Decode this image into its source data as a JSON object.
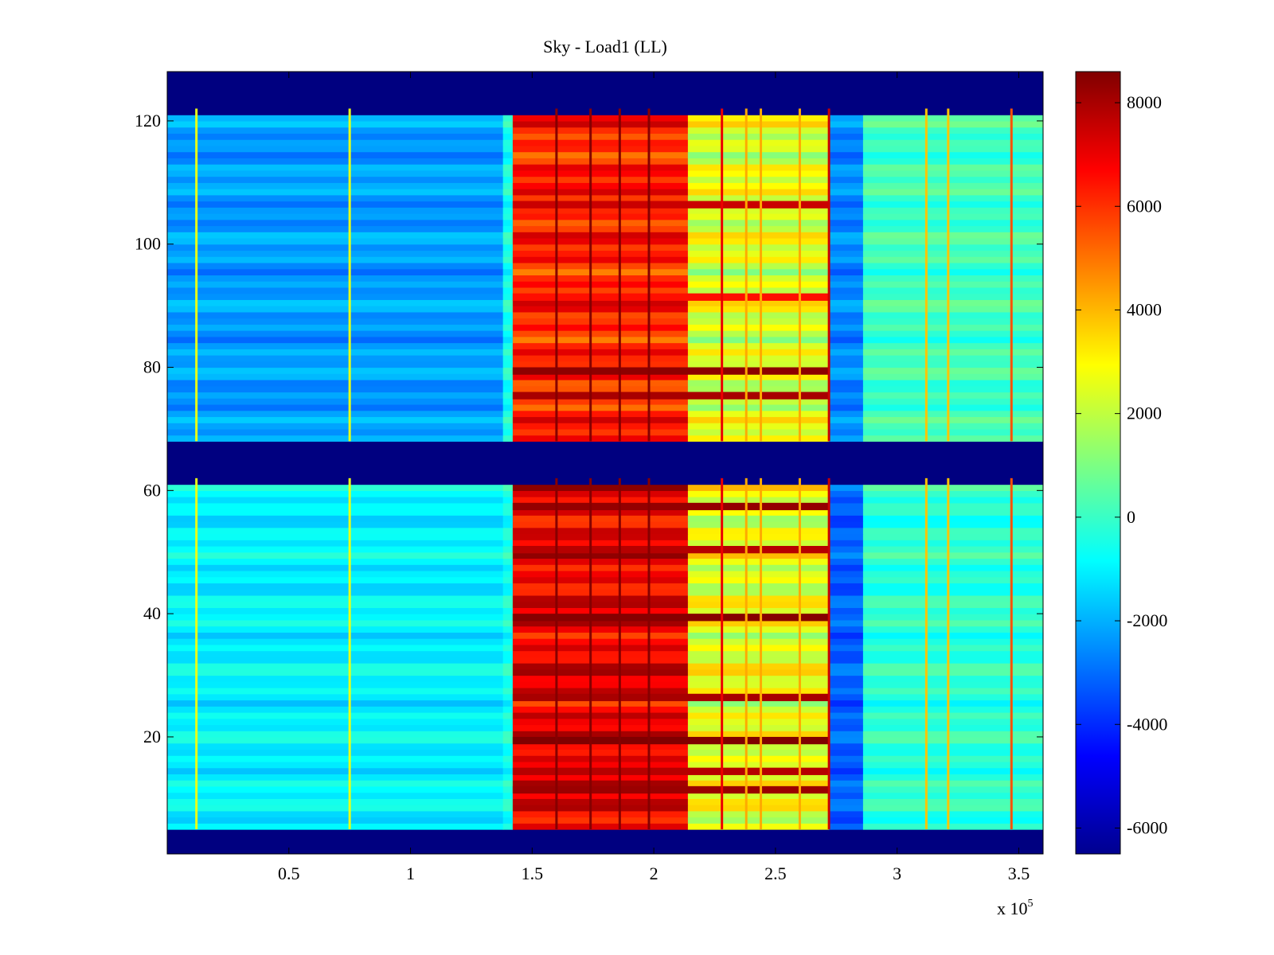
{
  "chart_data": {
    "type": "heatmap",
    "title": "Sky - Load1 (LL)",
    "xlabel": "",
    "ylabel": "",
    "x_multiplier_label": "x 10",
    "x_multiplier_exponent": "5",
    "xlim": [
      0.0,
      3.6
    ],
    "ylim": [
      1,
      128
    ],
    "xticks": [
      {
        "value": 0.5,
        "label": "0.5"
      },
      {
        "value": 1.0,
        "label": "1"
      },
      {
        "value": 1.5,
        "label": "1.5"
      },
      {
        "value": 2.0,
        "label": "2"
      },
      {
        "value": 2.5,
        "label": "2.5"
      },
      {
        "value": 3.0,
        "label": "3"
      },
      {
        "value": 3.5,
        "label": "3.5"
      }
    ],
    "yticks": [
      {
        "value": 20,
        "label": "20"
      },
      {
        "value": 40,
        "label": "40"
      },
      {
        "value": 60,
        "label": "60"
      },
      {
        "value": 80,
        "label": "80"
      },
      {
        "value": 100,
        "label": "100"
      },
      {
        "value": 120,
        "label": "120"
      }
    ],
    "colorbar": {
      "colormap": "jet",
      "clim": [
        -6500,
        8600
      ],
      "ticks": [
        {
          "value": 8000,
          "label": "8000"
        },
        {
          "value": 6000,
          "label": "6000"
        },
        {
          "value": 4000,
          "label": "4000"
        },
        {
          "value": 2000,
          "label": "2000"
        },
        {
          "value": 0,
          "label": "0"
        },
        {
          "value": -2000,
          "label": "-2000"
        },
        {
          "value": -4000,
          "label": "-4000"
        },
        {
          "value": -6000,
          "label": "-6000"
        }
      ]
    },
    "masked_channel_ranges": [
      [
        1,
        4
      ],
      [
        62,
        67
      ],
      [
        122,
        128
      ]
    ],
    "regions": [
      {
        "x_range": [
          0.0,
          1.38
        ],
        "value_lower_channels": -1000,
        "value_upper_channels": -2300
      },
      {
        "x_range": [
          1.38,
          1.42
        ],
        "value_lower_channels": -500,
        "value_upper_channels": -500
      },
      {
        "x_range": [
          1.42,
          2.14
        ],
        "value_lower_channels": 7000,
        "value_upper_channels": 6200
      },
      {
        "x_range": [
          2.14,
          2.72
        ],
        "value_lower_channels": 2600,
        "value_upper_channels": 2400
      },
      {
        "x_range": [
          2.72,
          2.86
        ],
        "value_lower_channels": -3200,
        "value_upper_channels": -2600
      },
      {
        "x_range": [
          2.86,
          3.6
        ],
        "value_lower_channels": -200,
        "value_upper_channels": 100
      }
    ],
    "vertical_spikes": [
      {
        "x": 0.12,
        "value": 2600
      },
      {
        "x": 0.75,
        "value": 2600
      },
      {
        "x": 1.6,
        "value": 8500
      },
      {
        "x": 1.74,
        "value": 8500
      },
      {
        "x": 1.86,
        "value": 8500
      },
      {
        "x": 1.98,
        "value": 8500
      },
      {
        "x": 2.28,
        "value": 7000
      },
      {
        "x": 2.38,
        "value": 4200
      },
      {
        "x": 2.44,
        "value": 4200
      },
      {
        "x": 2.6,
        "value": 4200
      },
      {
        "x": 2.72,
        "value": 7500
      },
      {
        "x": 3.12,
        "value": 3800
      },
      {
        "x": 3.21,
        "value": 3800
      },
      {
        "x": 3.47,
        "value": 5500
      }
    ],
    "horizontal_bands": [
      {
        "channel": 11,
        "value": 8200
      },
      {
        "channel": 14,
        "value": 7800
      },
      {
        "channel": 19,
        "value": 8600
      },
      {
        "channel": 26,
        "value": 8000
      },
      {
        "channel": 39,
        "value": 8500
      },
      {
        "channel": 50,
        "value": 7800
      },
      {
        "channel": 57,
        "value": 8300
      },
      {
        "channel": 75,
        "value": 8000
      },
      {
        "channel": 79,
        "value": 8400
      },
      {
        "channel": 91,
        "value": 6500
      },
      {
        "channel": 106,
        "value": 7500
      }
    ]
  }
}
